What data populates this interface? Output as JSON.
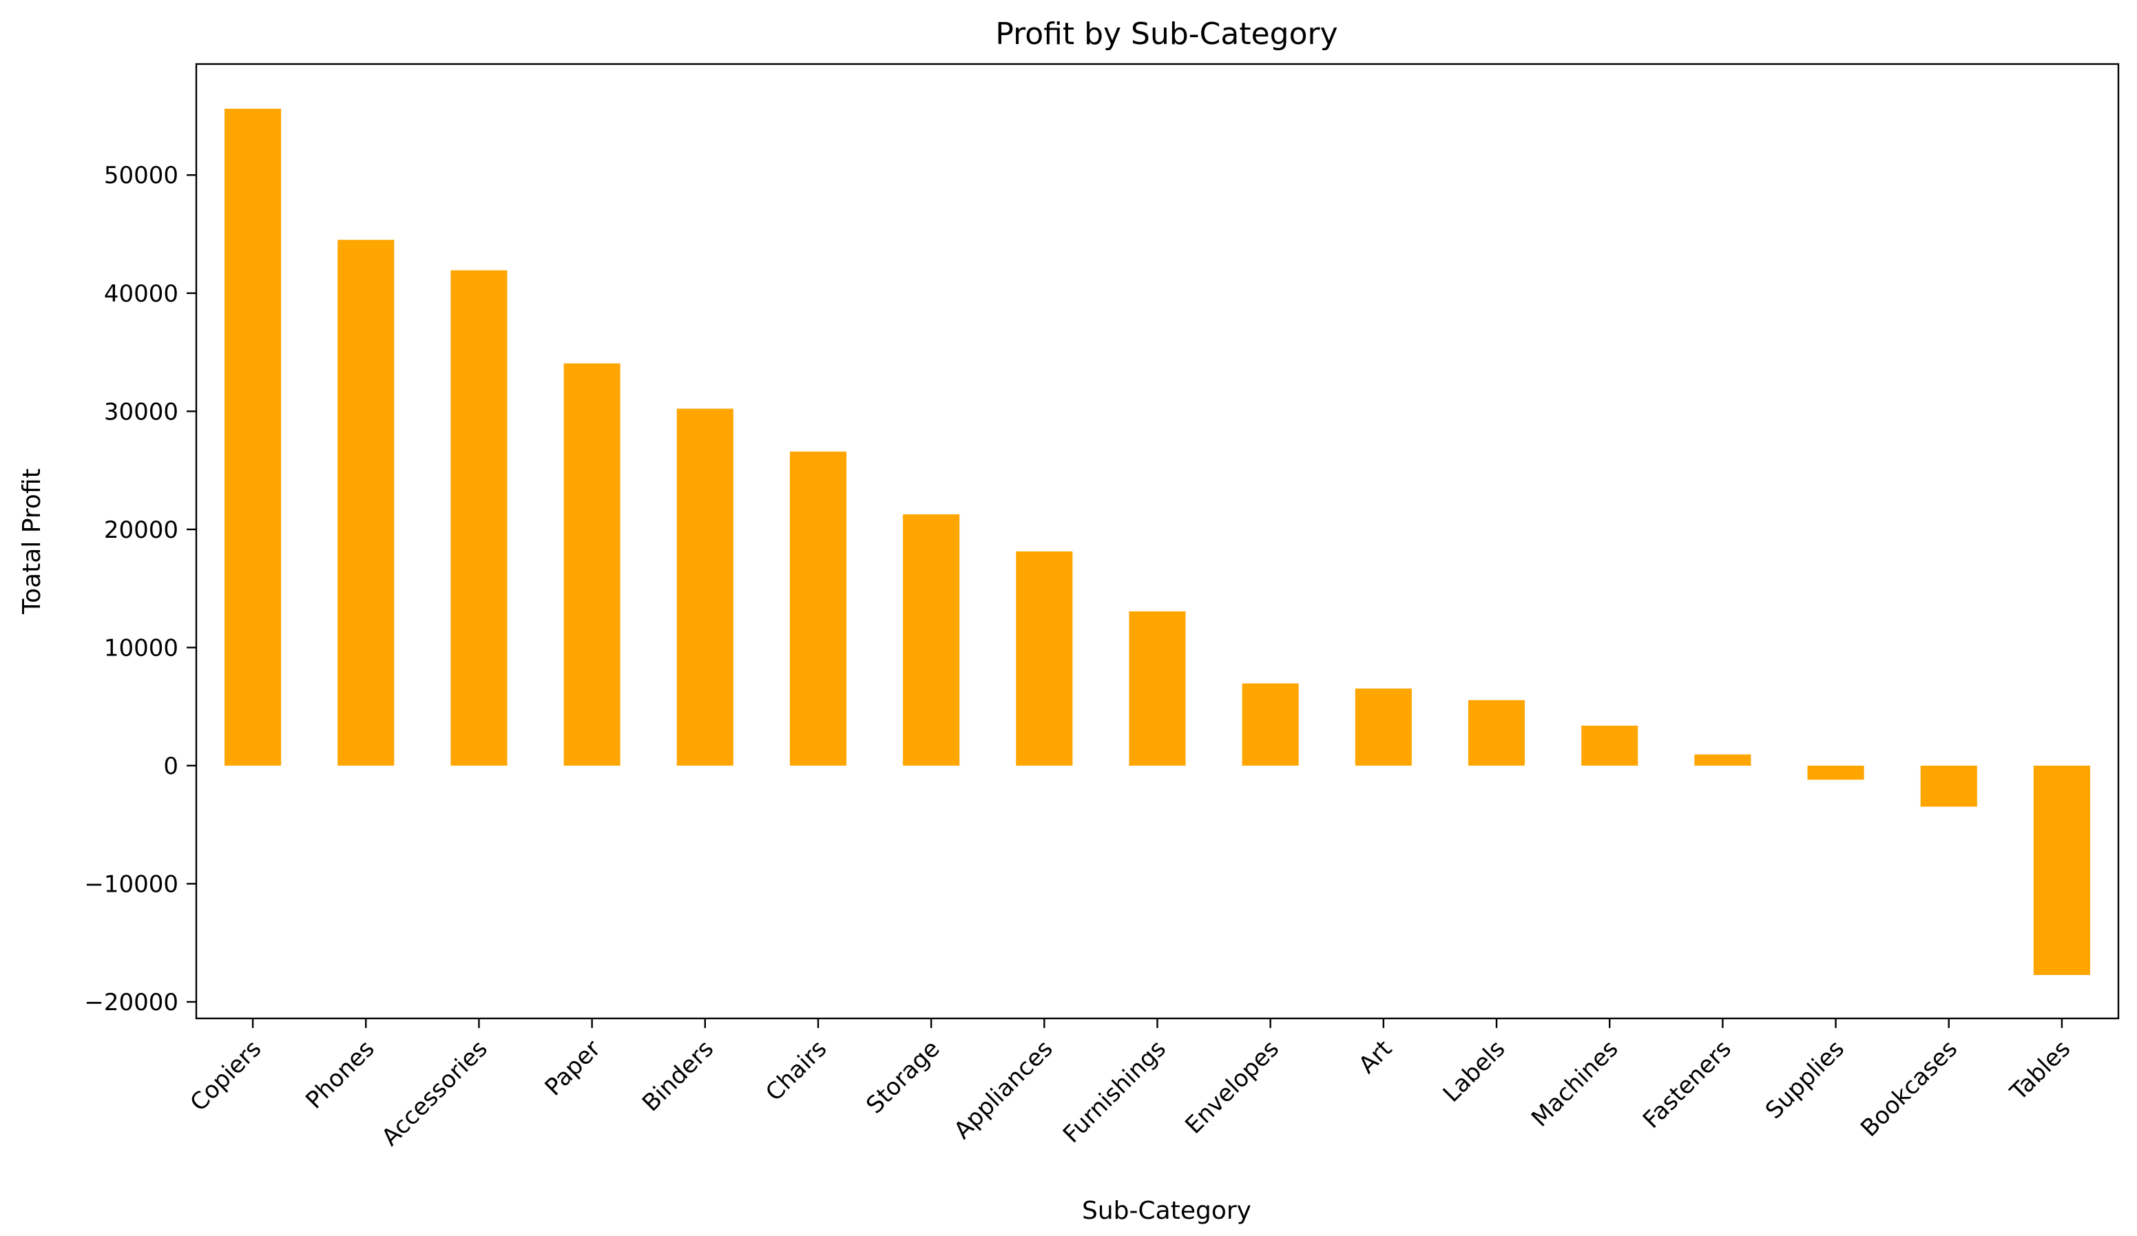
{
  "chart_data": {
    "type": "bar",
    "title": "Profit by Sub-Category",
    "xlabel": "Sub-Category",
    "ylabel": "Toatal Profit",
    "categories": [
      "Copiers",
      "Phones",
      "Accessories",
      "Paper",
      "Binders",
      "Chairs",
      "Storage",
      "Appliances",
      "Furnishings",
      "Envelopes",
      "Art",
      "Labels",
      "Machines",
      "Fasteners",
      "Supplies",
      "Bookcases",
      "Tables"
    ],
    "values": [
      55618,
      44516,
      41937,
      34054,
      30222,
      26590,
      21279,
      18138,
      13059,
      6964,
      6528,
      5546,
      3385,
      950,
      -1189,
      -3473,
      -17725
    ],
    "yticks": [
      -20000,
      -10000,
      0,
      10000,
      20000,
      30000,
      40000,
      50000
    ],
    "ytick_labels": [
      "−20000",
      "−10000",
      "0",
      "10000",
      "20000",
      "30000",
      "40000",
      "50000"
    ],
    "ylim": [
      -21400,
      59400
    ],
    "bar_color": "#ffa500",
    "grid": false,
    "legend": "none"
  }
}
